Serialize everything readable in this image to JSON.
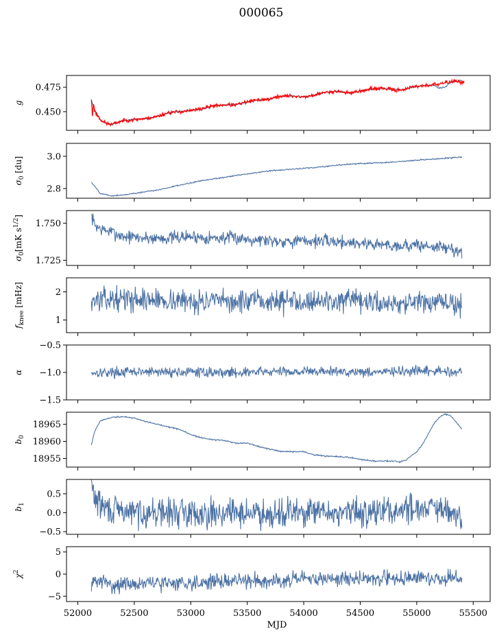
{
  "figure": {
    "title": "000065"
  },
  "chart_data": [
    {
      "type": "line",
      "ylabel": "g",
      "ylabel_html": "<tspan font-style='italic'>g</tspan>",
      "ylim": [
        0.431,
        0.487
      ],
      "yticks": [
        0.45,
        0.475
      ],
      "ytick_labels": [
        "0.450",
        "0.475"
      ],
      "xlim": [
        51900,
        55650
      ],
      "series": [
        {
          "color": "#4c72a4",
          "noise": 0.0004,
          "seed": 11,
          "x": [
            52120,
            52150,
            52200,
            52250,
            52300,
            52400,
            52500,
            52600,
            52700,
            52800,
            52900,
            53000,
            53100,
            53200,
            53300,
            53400,
            53500,
            53600,
            53700,
            53800,
            53900,
            54000,
            54100,
            54200,
            54300,
            54400,
            54500,
            54600,
            54700,
            54800,
            54900,
            55000,
            55100,
            55150,
            55200,
            55250,
            55300,
            55400
          ],
          "y": [
            0.462,
            0.452,
            0.442,
            0.438,
            0.437,
            0.441,
            0.442,
            0.443,
            0.445,
            0.449,
            0.45,
            0.451,
            0.453,
            0.456,
            0.457,
            0.457,
            0.46,
            0.462,
            0.463,
            0.466,
            0.466,
            0.465,
            0.467,
            0.47,
            0.471,
            0.469,
            0.471,
            0.473,
            0.474,
            0.472,
            0.473,
            0.476,
            0.477,
            0.477,
            0.474,
            0.475,
            0.48,
            0.482
          ]
        },
        {
          "color": "#ff0000",
          "noise": 0.0009,
          "seed": 23,
          "x": [
            52120,
            52130,
            52140,
            52150,
            52200,
            52250,
            52300,
            52400,
            52500,
            52600,
            52700,
            52800,
            52900,
            53000,
            53100,
            53200,
            53300,
            53400,
            53500,
            53600,
            53700,
            53800,
            53900,
            54000,
            54100,
            54200,
            54300,
            54400,
            54500,
            54600,
            54700,
            54800,
            54900,
            55000,
            55100,
            55200,
            55300,
            55350,
            55420
          ],
          "y": [
            0.463,
            0.445,
            0.46,
            0.45,
            0.442,
            0.438,
            0.437,
            0.441,
            0.442,
            0.443,
            0.445,
            0.449,
            0.45,
            0.451,
            0.453,
            0.456,
            0.457,
            0.457,
            0.46,
            0.462,
            0.463,
            0.466,
            0.466,
            0.465,
            0.467,
            0.47,
            0.471,
            0.469,
            0.471,
            0.473,
            0.474,
            0.472,
            0.473,
            0.476,
            0.477,
            0.478,
            0.481,
            0.481,
            0.48
          ]
        }
      ]
    },
    {
      "type": "line",
      "ylabel": "σ0 [du]",
      "ylabel_html": "<tspan font-style='italic'>σ</tspan><tspan dy='3' font-size='9'>0</tspan><tspan dy='-3'> [du]</tspan>",
      "ylim": [
        2.74,
        3.08
      ],
      "yticks": [
        2.8,
        3.0
      ],
      "ytick_labels": [
        "2.8",
        "3.0"
      ],
      "xlim": [
        51900,
        55650
      ],
      "series": [
        {
          "color": "#4c72a4",
          "noise": 0.002,
          "seed": 5,
          "x": [
            52120,
            52200,
            52300,
            52400,
            52500,
            52700,
            52900,
            53100,
            53300,
            53500,
            53700,
            53900,
            54100,
            54300,
            54500,
            54700,
            54900,
            55100,
            55300,
            55400
          ],
          "y": [
            2.84,
            2.77,
            2.755,
            2.76,
            2.77,
            2.79,
            2.82,
            2.85,
            2.87,
            2.89,
            2.91,
            2.92,
            2.93,
            2.945,
            2.955,
            2.96,
            2.97,
            2.98,
            2.99,
            2.995
          ]
        }
      ]
    },
    {
      "type": "line",
      "ylabel": "σ0[mK s^1/2]",
      "ylabel_html": "<tspan font-style='italic'>σ</tspan><tspan dy='3' font-size='9'>0</tspan><tspan dy='-3'>[mK s</tspan><tspan dy='-5' font-size='9'>1/2</tspan><tspan dy='5'>]</tspan>",
      "ylim": [
        1.7215,
        1.7585
      ],
      "yticks": [
        1.725,
        1.75
      ],
      "ytick_labels": [
        "1.725",
        "1.750"
      ],
      "xlim": [
        51900,
        55650
      ],
      "series": [
        {
          "color": "#4c72a4",
          "noise": 0.0022,
          "seed": 7,
          "x": [
            52120,
            52150,
            52200,
            52300,
            52400,
            52600,
            52800,
            53000,
            53200,
            53400,
            53600,
            53800,
            54000,
            54200,
            54400,
            54600,
            54800,
            55000,
            55200,
            55400
          ],
          "y": [
            1.755,
            1.749,
            1.746,
            1.744,
            1.741,
            1.74,
            1.74,
            1.741,
            1.74,
            1.74,
            1.739,
            1.738,
            1.738,
            1.738,
            1.737,
            1.736,
            1.735,
            1.735,
            1.734,
            1.731
          ]
        }
      ]
    },
    {
      "type": "line",
      "ylabel": "fknee [mHz]",
      "ylabel_html": "<tspan font-style='italic'>f</tspan><tspan dy='3' font-size='9'>knee</tspan><tspan dy='-3'> [mHz]</tspan>",
      "ylim": [
        0.55,
        2.5
      ],
      "yticks": [
        1,
        2
      ],
      "ytick_labels": [
        "1",
        "2"
      ],
      "xlim": [
        51900,
        55650
      ],
      "series": [
        {
          "color": "#4c72a4",
          "noise": 0.2,
          "seed": 13,
          "x": [
            52120,
            52400,
            52800,
            53200,
            53600,
            54000,
            54400,
            54800,
            55200,
            55400
          ],
          "y": [
            1.7,
            1.75,
            1.7,
            1.65,
            1.65,
            1.7,
            1.65,
            1.6,
            1.6,
            1.55
          ]
        }
      ]
    },
    {
      "type": "line",
      "ylabel": "α",
      "ylabel_html": "<tspan font-style='italic'>α</tspan>",
      "ylim": [
        -1.5,
        -0.5
      ],
      "yticks": [
        -1.5,
        -1.0,
        -0.5
      ],
      "ytick_labels": [
        "−1.5",
        "−1.0",
        "−0.5"
      ],
      "xlim": [
        51900,
        55650
      ],
      "series": [
        {
          "color": "#4c72a4",
          "noise": 0.045,
          "seed": 17,
          "x": [
            52120,
            52800,
            53400,
            54000,
            54600,
            55200,
            55400
          ],
          "y": [
            -1.0,
            -0.99,
            -1.0,
            -0.98,
            -0.99,
            -0.98,
            -0.98
          ]
        }
      ]
    },
    {
      "type": "line",
      "ylabel": "b0",
      "ylabel_html": "<tspan font-style='italic'>b</tspan><tspan dy='3' font-size='9'>0</tspan>",
      "ylim": [
        18952.5,
        18968.5
      ],
      "yticks": [
        18955,
        18960,
        18965
      ],
      "ytick_labels": [
        "18955",
        "18960",
        "18965"
      ],
      "xlim": [
        51900,
        55650
      ],
      "series": [
        {
          "color": "#4c72a4",
          "noise": 0.1,
          "seed": 19,
          "x": [
            52120,
            52150,
            52200,
            52300,
            52400,
            52500,
            52600,
            52700,
            52800,
            52900,
            53000,
            53100,
            53200,
            53300,
            53400,
            53500,
            53600,
            53700,
            53800,
            53900,
            54000,
            54100,
            54200,
            54300,
            54400,
            54500,
            54600,
            54700,
            54800,
            54850,
            54900,
            55000,
            55050,
            55100,
            55150,
            55200,
            55250,
            55300,
            55350,
            55400
          ],
          "y": [
            18959,
            18963,
            18966,
            18967,
            18967.2,
            18966.8,
            18965.8,
            18965,
            18964.3,
            18963.5,
            18962,
            18961,
            18960.5,
            18960.2,
            18959.5,
            18959.5,
            18958.5,
            18957.7,
            18957,
            18957,
            18957,
            18956,
            18955.7,
            18955.5,
            18955.3,
            18954.8,
            18954.3,
            18954.3,
            18954.3,
            18954,
            18954.5,
            18957,
            18959,
            18962,
            18965,
            18967,
            18968,
            18967.5,
            18965.5,
            18963.5
          ]
        }
      ]
    },
    {
      "type": "line",
      "ylabel": "b1",
      "ylabel_html": "<tspan font-style='italic'>b</tspan><tspan dy='3' font-size='9'>1</tspan>",
      "ylim": [
        -0.57,
        0.88
      ],
      "yticks": [
        -0.5,
        0.0,
        0.5
      ],
      "ytick_labels": [
        "−0.5",
        "0.0",
        "0.5"
      ],
      "xlim": [
        51900,
        55650
      ],
      "series": [
        {
          "color": "#4c72a4",
          "noise": 0.19,
          "seed": 29,
          "x": [
            52120,
            52150,
            52200,
            52300,
            52500,
            52800,
            53100,
            53400,
            53700,
            54000,
            54300,
            54600,
            54800,
            55000,
            55100,
            55200,
            55300,
            55400
          ],
          "y": [
            0.75,
            0.4,
            0.2,
            0.05,
            0.02,
            0.0,
            0.0,
            0.0,
            0.0,
            0.0,
            0.0,
            0.02,
            0.05,
            0.15,
            0.15,
            0.05,
            0.0,
            -0.2
          ]
        }
      ]
    },
    {
      "type": "line",
      "ylabel": "χ2",
      "ylabel_html": "<tspan font-style='italic'>χ</tspan><tspan dy='-5' font-size='9'>2</tspan>",
      "ylim": [
        -6.2,
        6.2
      ],
      "yticks": [
        -5,
        0,
        5
      ],
      "ytick_labels": [
        "−5",
        "0",
        "5"
      ],
      "xlim": [
        51900,
        55650
      ],
      "xticks": [
        52000,
        52500,
        53000,
        53500,
        54000,
        54500,
        55000,
        55500
      ],
      "xtick_labels": [
        "52000",
        "52500",
        "53000",
        "53500",
        "54000",
        "54500",
        "55000",
        "55500"
      ],
      "xlabel": "MJD",
      "series": [
        {
          "color": "#4c72a4",
          "noise": 0.85,
          "seed": 31,
          "x": [
            52120,
            52200,
            52300,
            52500,
            52800,
            53100,
            53400,
            53700,
            54000,
            54300,
            54600,
            54900,
            55200,
            55400
          ],
          "y": [
            -2,
            -1.5,
            -2.5,
            -2.2,
            -2.0,
            -1.8,
            -1.5,
            -1.4,
            -1.2,
            -1.0,
            -1.0,
            -0.9,
            -1.0,
            -1.0
          ]
        }
      ]
    }
  ]
}
